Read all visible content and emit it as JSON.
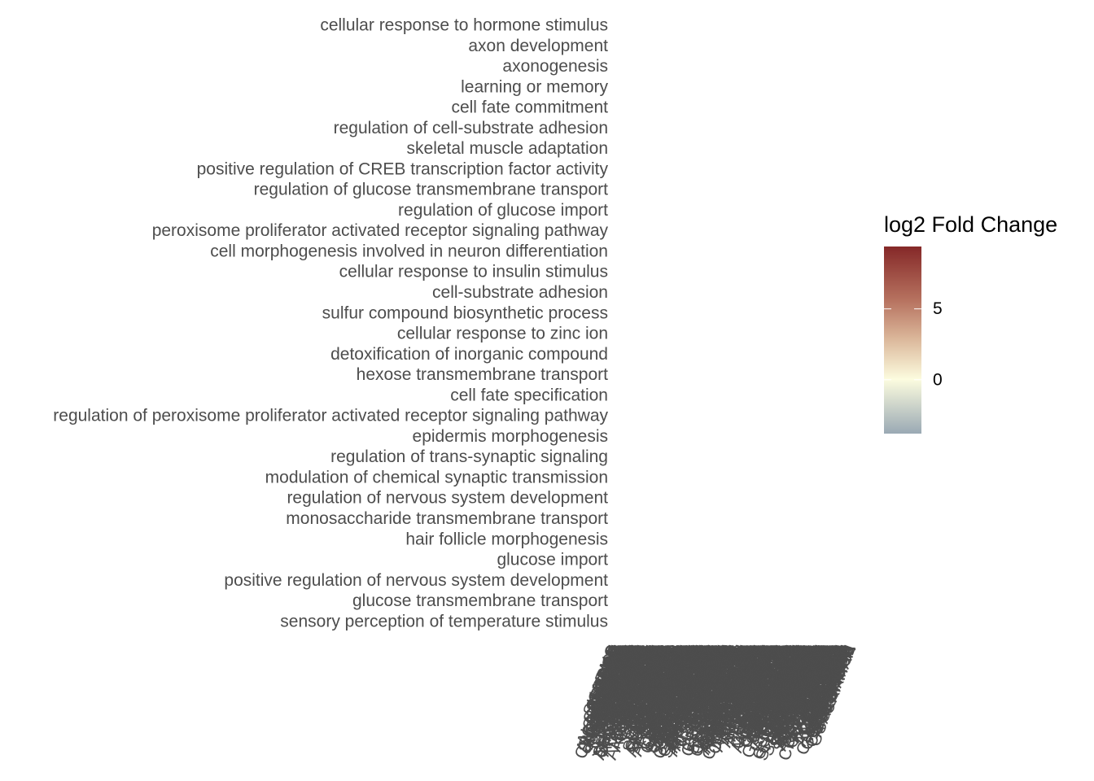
{
  "chart_data": {
    "type": "heatmap",
    "title": "",
    "xlabel": "",
    "ylabel": "",
    "y_categories": [
      "cellular response to hormone stimulus",
      "axon development",
      "axonogenesis",
      "learning or memory",
      "cell fate commitment",
      "regulation of cell-substrate adhesion",
      "skeletal muscle adaptation",
      "positive regulation of CREB transcription factor activity",
      "regulation of glucose transmembrane transport",
      "regulation of glucose import",
      "peroxisome proliferator activated receptor signaling pathway",
      "cell morphogenesis involved in neuron differentiation",
      "cellular response to insulin stimulus",
      "cell-substrate adhesion",
      "sulfur compound biosynthetic process",
      "cellular response to zinc ion",
      "detoxification of inorganic compound",
      "hexose transmembrane transport",
      "cell fate specification",
      "regulation of peroxisome proliferator activated receptor signaling pathway",
      "epidermis morphogenesis",
      "regulation of trans-synaptic signaling",
      "modulation of chemical synaptic transmission",
      "regulation of nervous system development",
      "monosaccharide transmembrane transport",
      "hair follicle morphogenesis",
      "glucose import",
      "positive regulation of nervous system development",
      "glucose transmembrane transport",
      "sensory perception of temperature stimulus"
    ],
    "x_tick_labels_note": "",
    "x_visible_fragments": [
      "SL",
      "AP",
      "AI",
      "CS",
      "GS",
      "SH",
      "AH",
      "CR",
      "CP"
    ],
    "legend": {
      "title": "log2 Fold Change",
      "ticks": [
        0,
        5
      ],
      "range": [
        -3.8,
        9.4
      ],
      "colors": {
        "low": "#9aa9b4",
        "mid": "#fcfcdf",
        "high": "#852828"
      },
      "placement": "right"
    },
    "grid": false
  }
}
